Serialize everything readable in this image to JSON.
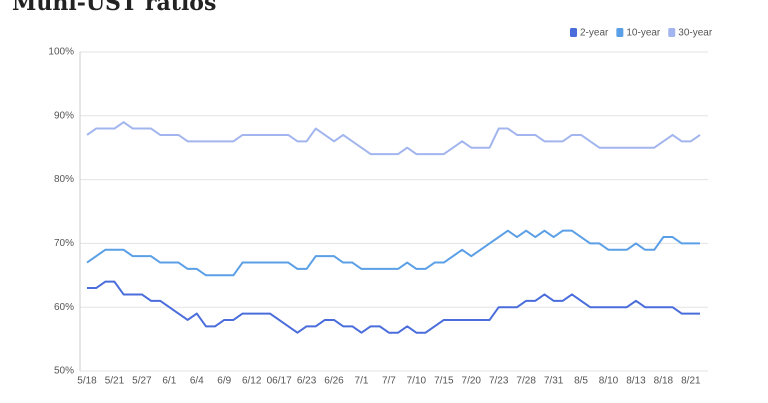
{
  "chart_data": {
    "type": "line",
    "title": "Muni-UST ratios",
    "categories": [
      "5/18",
      null,
      null,
      "5/21",
      null,
      null,
      "5/27",
      null,
      null,
      "6/1",
      null,
      null,
      "6/4",
      null,
      null,
      "6/9",
      null,
      null,
      "6/12",
      null,
      null,
      "06/17",
      null,
      null,
      "6/23",
      null,
      null,
      "6/26",
      null,
      null,
      "7/1",
      null,
      null,
      "7/7",
      null,
      null,
      "7/10",
      null,
      null,
      "7/15",
      null,
      null,
      "7/20",
      null,
      null,
      "7/23",
      null,
      null,
      "7/28",
      null,
      null,
      "7/31",
      null,
      null,
      "8/5",
      null,
      null,
      "8/10",
      null,
      null,
      "8/13",
      null,
      null,
      "8/18",
      null,
      null,
      "8/21",
      null
    ],
    "series": [
      {
        "name": "2-year",
        "color": "#4a6ddb",
        "values": [
          63,
          63,
          64,
          64,
          62,
          62,
          62,
          61,
          61,
          60,
          59,
          58,
          59,
          57,
          57,
          58,
          58,
          59,
          59,
          59,
          59,
          58,
          57,
          56,
          57,
          57,
          58,
          58,
          57,
          57,
          56,
          57,
          57,
          56,
          56,
          57,
          56,
          56,
          57,
          58,
          58,
          58,
          58,
          58,
          58,
          60,
          60,
          60,
          61,
          61,
          62,
          61,
          61,
          62,
          61,
          60,
          60,
          60,
          60,
          60,
          61,
          60,
          60,
          60,
          60,
          59,
          59,
          59
        ]
      },
      {
        "name": "10-year",
        "color": "#5b9fe6",
        "values": [
          67,
          68,
          69,
          69,
          69,
          68,
          68,
          68,
          67,
          67,
          67,
          66,
          66,
          65,
          65,
          65,
          65,
          67,
          67,
          67,
          67,
          67,
          67,
          66,
          66,
          68,
          68,
          68,
          67,
          67,
          66,
          66,
          66,
          66,
          66,
          67,
          66,
          66,
          67,
          67,
          68,
          69,
          68,
          69,
          70,
          71,
          72,
          71,
          72,
          71,
          72,
          71,
          72,
          72,
          71,
          70,
          70,
          69,
          69,
          69,
          70,
          69,
          69,
          71,
          71,
          70,
          70,
          70
        ]
      },
      {
        "name": "30-year",
        "color": "#a3b5ee",
        "values": [
          87,
          88,
          88,
          88,
          89,
          88,
          88,
          88,
          87,
          87,
          87,
          86,
          86,
          86,
          86,
          86,
          86,
          87,
          87,
          87,
          87,
          87,
          87,
          86,
          86,
          88,
          87,
          86,
          87,
          86,
          85,
          84,
          84,
          84,
          84,
          85,
          84,
          84,
          84,
          84,
          85,
          86,
          85,
          85,
          85,
          88,
          88,
          87,
          87,
          87,
          86,
          86,
          86,
          87,
          87,
          86,
          85,
          85,
          85,
          85,
          85,
          85,
          85,
          86,
          87,
          86,
          86,
          87
        ]
      }
    ],
    "ylim": [
      50,
      100
    ],
    "yticks": [
      {
        "value": 50,
        "label": "50%"
      },
      {
        "value": 60,
        "label": "60%"
      },
      {
        "value": 70,
        "label": "70%"
      },
      {
        "value": 80,
        "label": "80%"
      },
      {
        "value": 90,
        "label": "90%"
      },
      {
        "value": 100,
        "label": "100%"
      }
    ],
    "grid": true,
    "legend": "top-right"
  }
}
